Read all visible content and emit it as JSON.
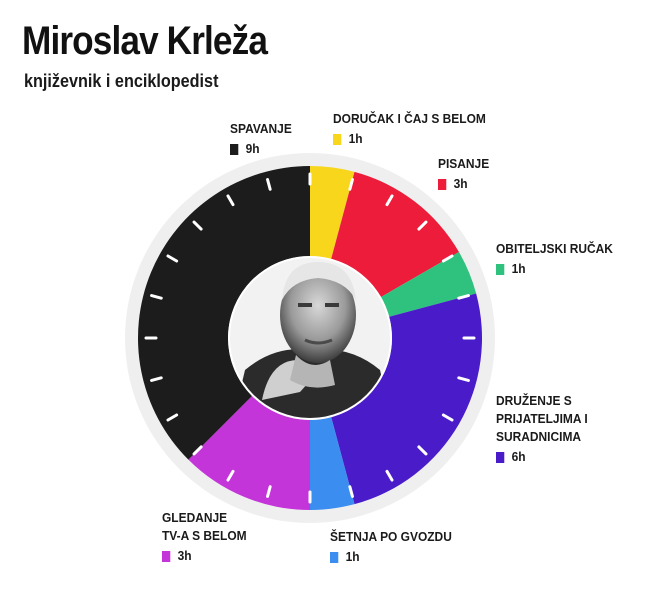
{
  "header": {
    "title": "Miroslav Krleža",
    "subtitle": "književnik i enciklopedist"
  },
  "chart_data": {
    "type": "pie",
    "style": "donut",
    "unit": "h",
    "slices": [
      {
        "label": "DORUČAK I ČAJ S BELOM",
        "value": 1,
        "display": "1h",
        "color": "#f7d61c"
      },
      {
        "label": "PISANJE",
        "value": 3,
        "display": "3h",
        "color": "#ec1c3a"
      },
      {
        "label": "OBITELJSKI RUČAK",
        "value": 1,
        "display": "1h",
        "color": "#2ec27e"
      },
      {
        "label": "DRUŽENJE S\nPRIJATELJIMA I\nSURADNICIMA",
        "value": 6,
        "display": "6h",
        "color": "#4a1bc9"
      },
      {
        "label": "ŠETNJA PO GVOZDU",
        "value": 1,
        "display": "1h",
        "color": "#3b8df0"
      },
      {
        "label": "GLEDANJE\nTV-A S BELOM",
        "value": 3,
        "display": "3h",
        "color": "#c335d8"
      },
      {
        "label": "SPAVANJE",
        "value": 9,
        "display": "9h",
        "color": "#1c1c1c"
      }
    ],
    "center_image": "portrait-photo"
  }
}
